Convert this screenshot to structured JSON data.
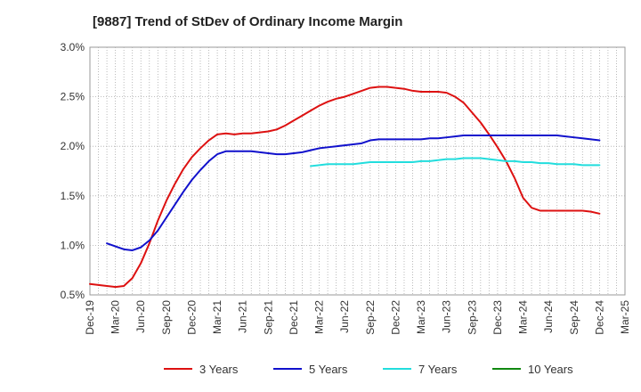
{
  "chart_data": {
    "type": "line",
    "title": "[9887]  Trend of StDev of Ordinary Income Margin",
    "xlabel": "",
    "ylabel": "",
    "x_ticks": [
      "Dec-19",
      "Mar-20",
      "Jun-20",
      "Sep-20",
      "Dec-20",
      "Mar-21",
      "Jun-21",
      "Sep-21",
      "Dec-21",
      "Mar-22",
      "Jun-22",
      "Sep-22",
      "Dec-22",
      "Mar-23",
      "Jun-23",
      "Sep-23",
      "Dec-23",
      "Mar-24",
      "Jun-24",
      "Sep-24",
      "Dec-24",
      "Mar-25"
    ],
    "y_ticks": [
      "0.5%",
      "1.0%",
      "1.5%",
      "2.0%",
      "2.5%",
      "3.0%"
    ],
    "ylim": [
      0.5,
      3.0
    ],
    "grid": true,
    "legend_position": "bottom",
    "series": [
      {
        "name": "3 Years",
        "color": "#dd1111",
        "points": [
          [
            "Dec-19",
            0.61
          ],
          [
            "Jan-20",
            0.6
          ],
          [
            "Feb-20",
            0.59
          ],
          [
            "Mar-20",
            0.58
          ],
          [
            "Apr-20",
            0.59
          ],
          [
            "May-20",
            0.67
          ],
          [
            "Jun-20",
            0.82
          ],
          [
            "Jul-20",
            1.02
          ],
          [
            "Aug-20",
            1.25
          ],
          [
            "Sep-20",
            1.45
          ],
          [
            "Oct-20",
            1.62
          ],
          [
            "Nov-20",
            1.77
          ],
          [
            "Dec-20",
            1.89
          ],
          [
            "Jan-21",
            1.98
          ],
          [
            "Feb-21",
            2.06
          ],
          [
            "Mar-21",
            2.12
          ],
          [
            "Apr-21",
            2.13
          ],
          [
            "May-21",
            2.12
          ],
          [
            "Jun-21",
            2.13
          ],
          [
            "Jul-21",
            2.13
          ],
          [
            "Aug-21",
            2.14
          ],
          [
            "Sep-21",
            2.15
          ],
          [
            "Oct-21",
            2.17
          ],
          [
            "Nov-21",
            2.21
          ],
          [
            "Dec-21",
            2.26
          ],
          [
            "Jan-22",
            2.31
          ],
          [
            "Feb-22",
            2.36
          ],
          [
            "Mar-22",
            2.41
          ],
          [
            "Apr-22",
            2.45
          ],
          [
            "May-22",
            2.48
          ],
          [
            "Jun-22",
            2.5
          ],
          [
            "Jul-22",
            2.53
          ],
          [
            "Aug-22",
            2.56
          ],
          [
            "Sep-22",
            2.59
          ],
          [
            "Oct-22",
            2.6
          ],
          [
            "Nov-22",
            2.6
          ],
          [
            "Dec-22",
            2.59
          ],
          [
            "Jan-23",
            2.58
          ],
          [
            "Feb-23",
            2.56
          ],
          [
            "Mar-23",
            2.55
          ],
          [
            "Apr-23",
            2.55
          ],
          [
            "May-23",
            2.55
          ],
          [
            "Jun-23",
            2.54
          ],
          [
            "Jul-23",
            2.5
          ],
          [
            "Aug-23",
            2.44
          ],
          [
            "Sep-23",
            2.34
          ],
          [
            "Oct-23",
            2.24
          ],
          [
            "Nov-23",
            2.12
          ],
          [
            "Dec-23",
            1.99
          ],
          [
            "Jan-24",
            1.85
          ],
          [
            "Feb-24",
            1.68
          ],
          [
            "Mar-24",
            1.48
          ],
          [
            "Apr-24",
            1.38
          ],
          [
            "May-24",
            1.35
          ],
          [
            "Jun-24",
            1.35
          ],
          [
            "Jul-24",
            1.35
          ],
          [
            "Aug-24",
            1.35
          ],
          [
            "Sep-24",
            1.35
          ],
          [
            "Oct-24",
            1.35
          ],
          [
            "Nov-24",
            1.34
          ],
          [
            "Dec-24",
            1.32
          ]
        ]
      },
      {
        "name": "5 Years",
        "color": "#1111cc",
        "points": [
          [
            "Feb-20",
            1.02
          ],
          [
            "Mar-20",
            0.99
          ],
          [
            "Apr-20",
            0.96
          ],
          [
            "May-20",
            0.95
          ],
          [
            "Jun-20",
            0.98
          ],
          [
            "Jul-20",
            1.05
          ],
          [
            "Aug-20",
            1.15
          ],
          [
            "Sep-20",
            1.28
          ],
          [
            "Oct-20",
            1.41
          ],
          [
            "Nov-20",
            1.54
          ],
          [
            "Dec-20",
            1.66
          ],
          [
            "Jan-21",
            1.76
          ],
          [
            "Feb-21",
            1.85
          ],
          [
            "Mar-21",
            1.92
          ],
          [
            "Apr-21",
            1.95
          ],
          [
            "May-21",
            1.95
          ],
          [
            "Jun-21",
            1.95
          ],
          [
            "Jul-21",
            1.95
          ],
          [
            "Aug-21",
            1.94
          ],
          [
            "Sep-21",
            1.93
          ],
          [
            "Oct-21",
            1.92
          ],
          [
            "Nov-21",
            1.92
          ],
          [
            "Dec-21",
            1.93
          ],
          [
            "Jan-22",
            1.94
          ],
          [
            "Feb-22",
            1.96
          ],
          [
            "Mar-22",
            1.98
          ],
          [
            "Apr-22",
            1.99
          ],
          [
            "May-22",
            2.0
          ],
          [
            "Jun-22",
            2.01
          ],
          [
            "Jul-22",
            2.02
          ],
          [
            "Aug-22",
            2.03
          ],
          [
            "Sep-22",
            2.06
          ],
          [
            "Oct-22",
            2.07
          ],
          [
            "Nov-22",
            2.07
          ],
          [
            "Dec-22",
            2.07
          ],
          [
            "Jan-23",
            2.07
          ],
          [
            "Feb-23",
            2.07
          ],
          [
            "Mar-23",
            2.07
          ],
          [
            "Apr-23",
            2.08
          ],
          [
            "May-23",
            2.08
          ],
          [
            "Jun-23",
            2.09
          ],
          [
            "Jul-23",
            2.1
          ],
          [
            "Aug-23",
            2.11
          ],
          [
            "Sep-23",
            2.11
          ],
          [
            "Oct-23",
            2.11
          ],
          [
            "Nov-23",
            2.11
          ],
          [
            "Dec-23",
            2.11
          ],
          [
            "Jan-24",
            2.11
          ],
          [
            "Feb-24",
            2.11
          ],
          [
            "Mar-24",
            2.11
          ],
          [
            "Apr-24",
            2.11
          ],
          [
            "May-24",
            2.11
          ],
          [
            "Jun-24",
            2.11
          ],
          [
            "Jul-24",
            2.11
          ],
          [
            "Aug-24",
            2.1
          ],
          [
            "Sep-24",
            2.09
          ],
          [
            "Oct-24",
            2.08
          ],
          [
            "Nov-24",
            2.07
          ],
          [
            "Dec-24",
            2.06
          ]
        ]
      },
      {
        "name": "7 Years",
        "color": "#22dddd",
        "points": [
          [
            "Feb-22",
            1.8
          ],
          [
            "Mar-22",
            1.81
          ],
          [
            "Apr-22",
            1.82
          ],
          [
            "May-22",
            1.82
          ],
          [
            "Jun-22",
            1.82
          ],
          [
            "Jul-22",
            1.82
          ],
          [
            "Aug-22",
            1.83
          ],
          [
            "Sep-22",
            1.84
          ],
          [
            "Oct-22",
            1.84
          ],
          [
            "Nov-22",
            1.84
          ],
          [
            "Dec-22",
            1.84
          ],
          [
            "Jan-23",
            1.84
          ],
          [
            "Feb-23",
            1.84
          ],
          [
            "Mar-23",
            1.85
          ],
          [
            "Apr-23",
            1.85
          ],
          [
            "May-23",
            1.86
          ],
          [
            "Jun-23",
            1.87
          ],
          [
            "Jul-23",
            1.87
          ],
          [
            "Aug-23",
            1.88
          ],
          [
            "Sep-23",
            1.88
          ],
          [
            "Oct-23",
            1.88
          ],
          [
            "Nov-23",
            1.87
          ],
          [
            "Dec-23",
            1.86
          ],
          [
            "Jan-24",
            1.85
          ],
          [
            "Feb-24",
            1.85
          ],
          [
            "Mar-24",
            1.84
          ],
          [
            "Apr-24",
            1.84
          ],
          [
            "May-24",
            1.83
          ],
          [
            "Jun-24",
            1.83
          ],
          [
            "Jul-24",
            1.82
          ],
          [
            "Aug-24",
            1.82
          ],
          [
            "Sep-24",
            1.82
          ],
          [
            "Oct-24",
            1.81
          ],
          [
            "Nov-24",
            1.81
          ],
          [
            "Dec-24",
            1.81
          ]
        ]
      },
      {
        "name": "10 Years",
        "color": "#118811",
        "points": []
      }
    ]
  }
}
